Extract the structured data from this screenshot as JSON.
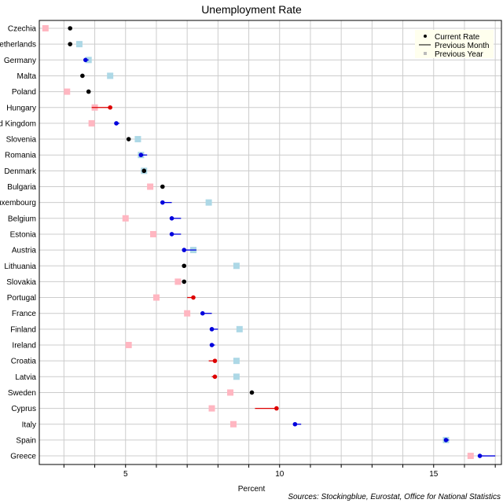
{
  "chart_data": {
    "type": "scatter",
    "title": "Unemployment Rate",
    "xlabel": "Percent",
    "source": "Sources: Stockingblue, Eurostat, Office for National Statistics",
    "xlim": [
      2.2,
      17.2
    ],
    "xticks": [
      5,
      10,
      15
    ],
    "grid": true,
    "legend_position": "top-right",
    "legend": {
      "current": "Current Rate",
      "previous_month": "Previous Month",
      "previous_year": "Previous Year"
    },
    "colors": {
      "improved": "#0000dd",
      "worsened": "#dd0000",
      "unchanged": "#000000",
      "year_better": "#add8e6",
      "year_worse": "#ffb6c1",
      "grid": "#cccccc",
      "legend_bg": "#ffffee"
    },
    "categories": [
      "Czechia",
      "Netherlands",
      "Germany",
      "Malta",
      "Poland",
      "Hungary",
      "United Kingdom",
      "Slovenia",
      "Romania",
      "Denmark",
      "Bulgaria",
      "Luxembourg",
      "Belgium",
      "Estonia",
      "Austria",
      "Lithuania",
      "Slovakia",
      "Portugal",
      "France",
      "Finland",
      "Ireland",
      "Croatia",
      "Latvia",
      "Sweden",
      "Cyprus",
      "Italy",
      "Spain",
      "Greece"
    ],
    "series": [
      {
        "name": "Current Rate",
        "values": [
          3.2,
          3.2,
          3.7,
          3.6,
          3.8,
          4.5,
          4.7,
          5.1,
          5.5,
          5.6,
          6.2,
          6.2,
          6.5,
          6.5,
          6.9,
          6.9,
          6.9,
          7.2,
          7.5,
          7.8,
          7.8,
          7.9,
          7.9,
          9.1,
          9.9,
          10.5,
          15.4,
          16.5
        ]
      },
      {
        "name": "Previous Month",
        "values": [
          3.2,
          3.2,
          3.8,
          3.6,
          3.8,
          3.9,
          4.8,
          5.1,
          5.7,
          5.6,
          6.2,
          6.5,
          6.8,
          6.8,
          7.3,
          6.9,
          6.9,
          7.0,
          7.8,
          8.0,
          7.9,
          7.7,
          7.8,
          9.1,
          9.2,
          10.7,
          15.5,
          17.0
        ]
      },
      {
        "name": "Previous Year",
        "values": [
          2.4,
          3.5,
          3.8,
          4.5,
          3.1,
          4.0,
          3.9,
          5.4,
          5.5,
          5.6,
          5.8,
          7.7,
          5.0,
          5.9,
          7.2,
          8.6,
          6.7,
          6.0,
          7.0,
          8.7,
          5.1,
          8.6,
          8.6,
          8.4,
          7.8,
          8.5,
          15.4,
          16.2
        ]
      }
    ]
  }
}
